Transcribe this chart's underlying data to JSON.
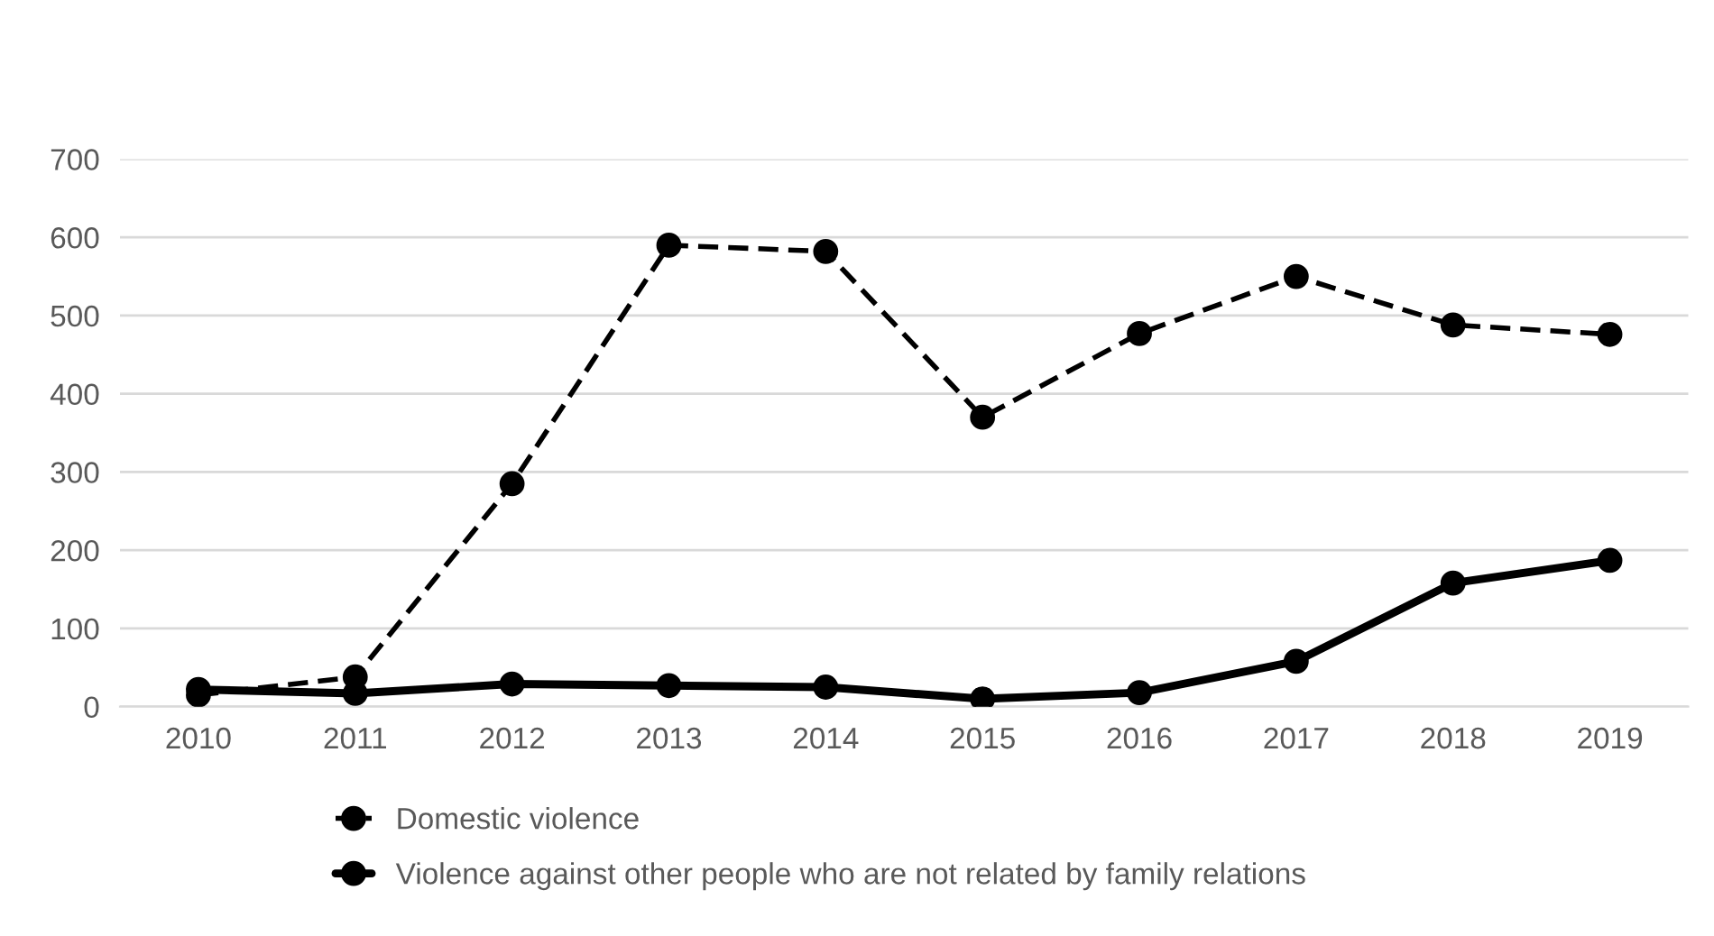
{
  "chart_data": {
    "type": "line",
    "categories": [
      "2010",
      "2011",
      "2012",
      "2013",
      "2014",
      "2015",
      "2016",
      "2017",
      "2018",
      "2019"
    ],
    "series": [
      {
        "name": "Domestic violence",
        "color": "#000000",
        "line_style": "dashed",
        "values": [
          15,
          38,
          285,
          590,
          582,
          370,
          477,
          550,
          488,
          476
        ]
      },
      {
        "name": "Violence against other people who are not related by family relations",
        "color": "#000000",
        "line_style": "solid",
        "values": [
          22,
          17,
          29,
          27,
          25,
          10,
          18,
          58,
          158,
          187
        ]
      }
    ],
    "ylim": [
      0,
      700
    ],
    "yticks": [
      0,
      100,
      200,
      300,
      400,
      500,
      600,
      700
    ],
    "grid": "y",
    "legend": "bottom left",
    "marker": "circle"
  }
}
